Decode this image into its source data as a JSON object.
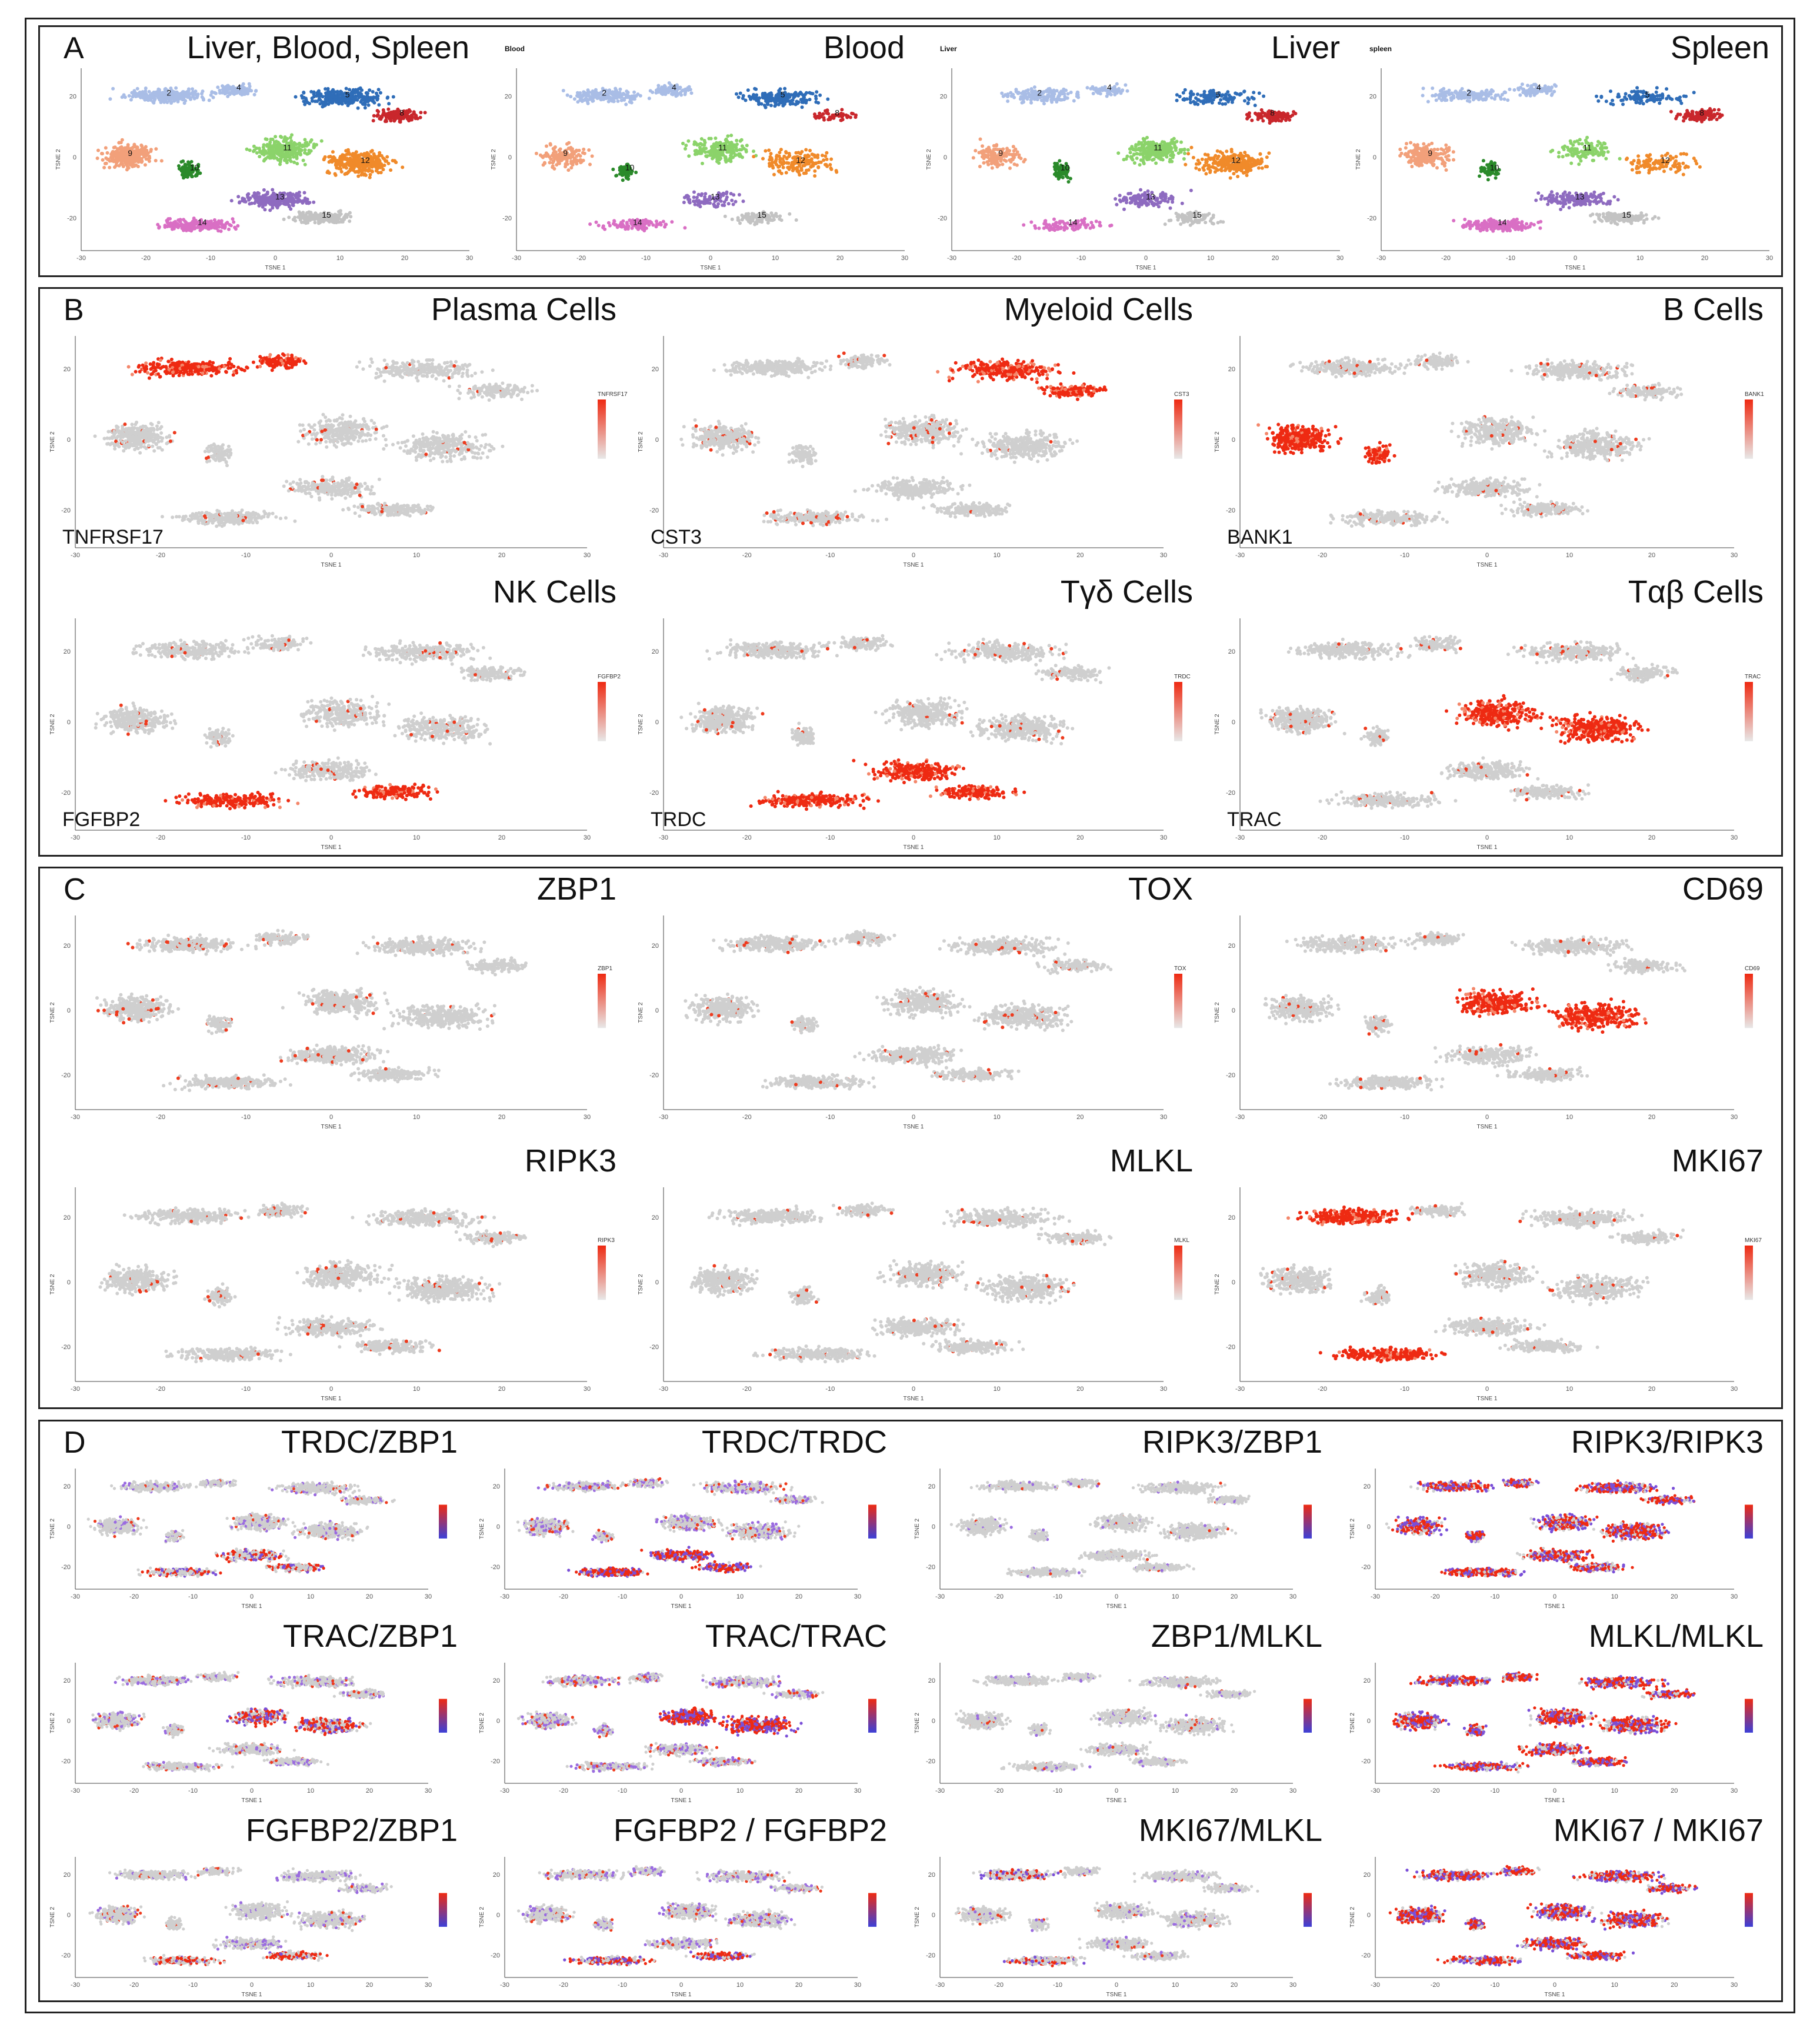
{
  "figure": {
    "panels": [
      {
        "letter": "A",
        "plots": [
          {
            "title": "Liver, Blood, Spleen",
            "small": "",
            "gene": "",
            "type": "cluster",
            "seed": 11
          },
          {
            "title": "Blood",
            "small": "Blood",
            "gene": "",
            "type": "cluster",
            "seed": 12
          },
          {
            "title": "Liver",
            "small": "Liver",
            "gene": "",
            "type": "cluster",
            "seed": 13
          },
          {
            "title": "Spleen",
            "small": "spleen",
            "gene": "",
            "type": "cluster",
            "seed": 14
          }
        ]
      },
      {
        "letter": "B",
        "plots": [
          {
            "title": "Plasma Cells",
            "gene": "TNFRSF17",
            "type": "expr",
            "hot": "plasma",
            "legend": "TNFRSF17",
            "seed": 21
          },
          {
            "title": "Myeloid Cells",
            "gene": "CST3",
            "type": "expr",
            "hot": "myeloid",
            "legend": "CST3",
            "seed": 22
          },
          {
            "title": "B Cells",
            "gene": "BANK1",
            "type": "expr",
            "hot": "bcell",
            "legend": "BANK1",
            "seed": 23
          },
          {
            "title": "NK Cells",
            "gene": "FGFBP2",
            "type": "expr",
            "hot": "nk",
            "legend": "FGFBP2",
            "seed": 24
          },
          {
            "title": "Tγδ Cells",
            "gene": "TRDC",
            "type": "expr",
            "hot": "tgd",
            "legend": "TRDC",
            "seed": 25
          },
          {
            "title": "Tαβ Cells",
            "gene": "TRAC",
            "type": "expr",
            "hot": "tab",
            "legend": "TRAC",
            "seed": 26
          }
        ]
      },
      {
        "letter": "C",
        "plots": [
          {
            "title": "ZBP1",
            "gene": "",
            "type": "expr",
            "hot": "sparse",
            "legend": "ZBP1",
            "seed": 31
          },
          {
            "title": "TOX",
            "gene": "",
            "type": "expr",
            "hot": "sparse",
            "legend": "TOX",
            "seed": 32
          },
          {
            "title": "CD69",
            "gene": "",
            "type": "expr",
            "hot": "tab",
            "legend": "CD69",
            "seed": 33
          },
          {
            "title": "RIPK3",
            "gene": "",
            "type": "expr",
            "hot": "sparse",
            "legend": "RIPK3",
            "seed": 34
          },
          {
            "title": "MLKL",
            "gene": "",
            "type": "expr",
            "hot": "sparse",
            "legend": "MLKL",
            "seed": 35
          },
          {
            "title": "MKI67",
            "gene": "",
            "type": "expr",
            "hot": "mki",
            "legend": "MKI67",
            "seed": 36
          }
        ]
      },
      {
        "letter": "D",
        "plots": [
          {
            "title": "TRDC/ZBP1",
            "type": "co",
            "hot": "tgd",
            "density": 0.4,
            "seed": 41
          },
          {
            "title": "TRDC/TRDC",
            "type": "co",
            "hot": "tgd",
            "density": 0.9,
            "seed": 42
          },
          {
            "title": "RIPK3/ZBP1",
            "type": "co",
            "hot": "sparse",
            "density": 0.15,
            "seed": 43
          },
          {
            "title": "RIPK3/RIPK3",
            "type": "co",
            "hot": "all",
            "density": 0.8,
            "seed": 44
          },
          {
            "title": "TRAC/ZBP1",
            "type": "co",
            "hot": "tab",
            "density": 0.6,
            "seed": 45
          },
          {
            "title": "TRAC/TRAC",
            "type": "co",
            "hot": "tab",
            "density": 0.95,
            "seed": 46
          },
          {
            "title": "ZBP1/MLKL",
            "type": "co",
            "hot": "sparse",
            "density": 0.25,
            "seed": 47
          },
          {
            "title": "MLKL/MLKL",
            "type": "co",
            "hot": "all",
            "density": 0.8,
            "seed": 48
          },
          {
            "title": "FGFBP2/ZBP1",
            "type": "co",
            "hot": "nk",
            "density": 0.45,
            "seed": 49
          },
          {
            "title": "FGFBP2 / FGFBP2",
            "type": "co",
            "hot": "nk",
            "density": 0.7,
            "seed": 50
          },
          {
            "title": "MKI67/MLKL",
            "type": "co",
            "hot": "mki",
            "density": 0.35,
            "seed": 51
          },
          {
            "title": "MKI67 / MKI67",
            "type": "co",
            "hot": "all",
            "density": 0.8,
            "seed": 52
          }
        ]
      }
    ],
    "axis": {
      "x_label": "TSNE 1",
      "y_label": "TSNE 2",
      "ticks": [
        "-30",
        "-20",
        "-10",
        "0",
        "10",
        "20",
        "30"
      ],
      "y_ticks": [
        "-20",
        "0",
        "20"
      ]
    },
    "cluster_numbers": [
      "2",
      "4",
      "5",
      "8",
      "9",
      "10",
      "11",
      "12",
      "13",
      "14",
      "15"
    ],
    "colors": {
      "grey": "#cfcfcf",
      "red": "#ee2a12",
      "blue": "#3b40d8",
      "purple": "#8a4fd0"
    }
  }
}
